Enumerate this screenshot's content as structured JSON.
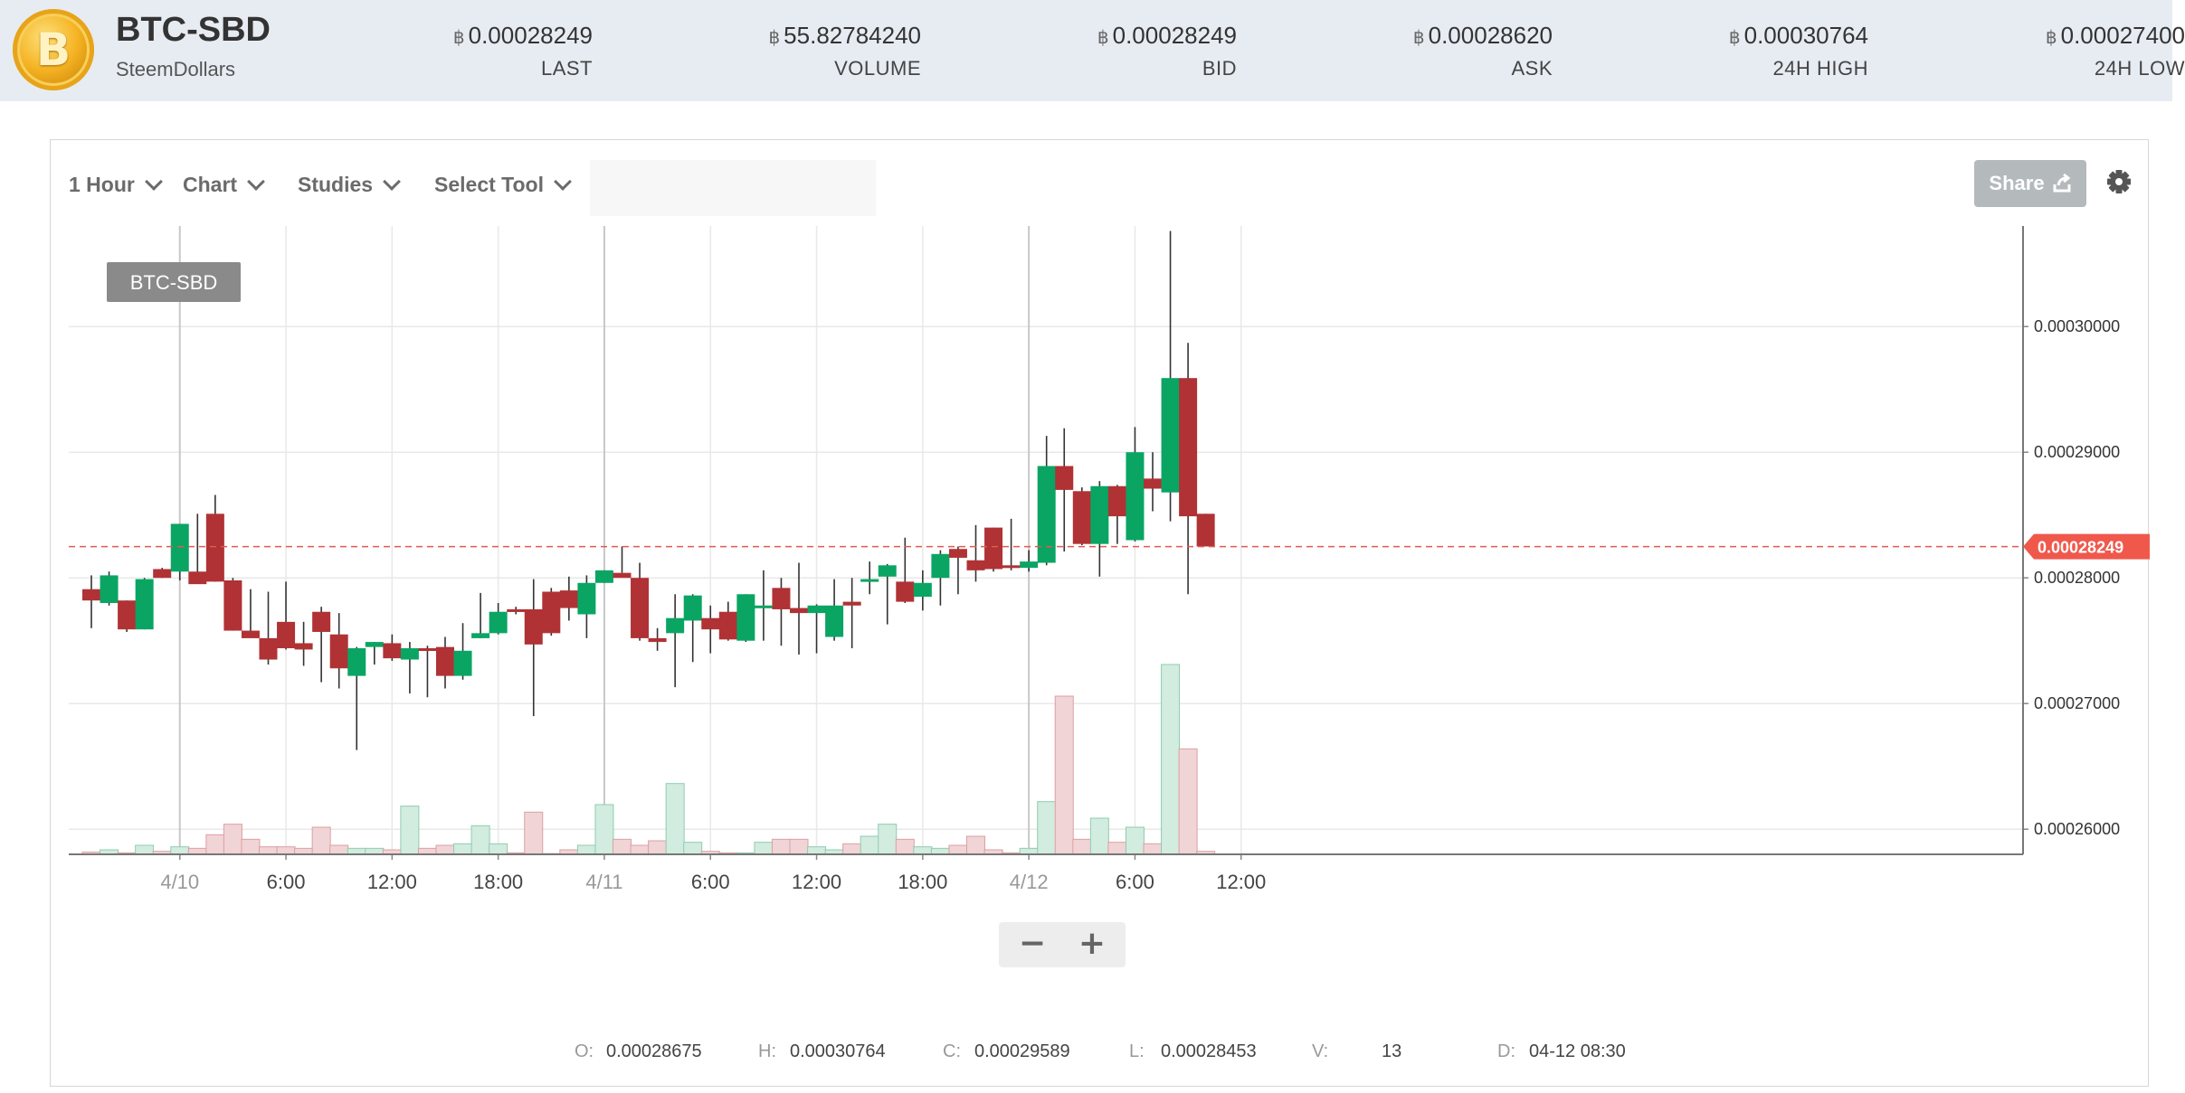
{
  "header": {
    "pair": "BTC-SBD",
    "pair_name": "SteemDollars",
    "currency_symbol": "฿",
    "stats": [
      {
        "value": "0.00028249",
        "label": "LAST"
      },
      {
        "value": "55.82784240",
        "label": "VOLUME"
      },
      {
        "value": "0.00028249",
        "label": "BID"
      },
      {
        "value": "0.00028620",
        "label": "ASK"
      },
      {
        "value": "0.00030764",
        "label": "24H HIGH"
      },
      {
        "value": "0.00027400",
        "label": "24H LOW"
      }
    ]
  },
  "toolbar": {
    "interval": "1 Hour",
    "chart": "Chart",
    "studies": "Studies",
    "select_tool": "Select Tool",
    "share": "Share"
  },
  "colors": {
    "up": "#0aa563",
    "down": "#b03235",
    "last_price_line": "#e05a4f",
    "grid": "#e8e8e8"
  },
  "ohlc": {
    "o_label": "O:",
    "o": "0.00028675",
    "h_label": "H:",
    "h": "0.00030764",
    "c_label": "C:",
    "c": "0.00029589",
    "l_label": "L:",
    "l": "0.00028453",
    "v_label": "V:",
    "v": "13",
    "d_label": "D:",
    "d": "04-12 08:30"
  },
  "chart_data": {
    "type": "candlestick",
    "symbol": "BTC-SBD",
    "interval": "1 Hour",
    "last_price": 0.00028249,
    "last_price_label": "0.00028249",
    "ylim": [
      0.000258,
      0.000308
    ],
    "y_ticks": [
      "0.00026000",
      "0.00027000",
      "0.00028000",
      "0.00029000",
      "0.00030000"
    ],
    "y_tick_values": [
      0.00026,
      0.00027,
      0.00028,
      0.00029,
      0.0003
    ],
    "x_labels": [
      "4/10",
      "6:00",
      "12:00",
      "18:00",
      "4/11",
      "6:00",
      "12:00",
      "18:00",
      "4/12",
      "6:00",
      "12:00"
    ],
    "x_label_hours": [
      5,
      11,
      17,
      23,
      29,
      35,
      41,
      47,
      53,
      59,
      65
    ],
    "candles": [
      {
        "o": 0.0002791,
        "h": 0.0002802,
        "l": 0.000276,
        "c": 0.0002782
      },
      {
        "o": 0.000278,
        "h": 0.0002805,
        "l": 0.0002778,
        "c": 0.0002802
      },
      {
        "o": 0.0002782,
        "h": 0.0002782,
        "l": 0.0002757,
        "c": 0.0002759
      },
      {
        "o": 0.0002759,
        "h": 0.00028,
        "l": 0.0002759,
        "c": 0.0002799
      },
      {
        "o": 0.0002807,
        "h": 0.0002808,
        "l": 0.00028,
        "c": 0.00028
      },
      {
        "o": 0.0002805,
        "h": 0.0002843,
        "l": 0.0002798,
        "c": 0.0002843
      },
      {
        "o": 0.0002805,
        "h": 0.0002851,
        "l": 0.0002796,
        "c": 0.0002795
      },
      {
        "o": 0.0002851,
        "h": 0.0002866,
        "l": 0.0002797,
        "c": 0.0002797
      },
      {
        "o": 0.0002798,
        "h": 0.00028,
        "l": 0.0002758,
        "c": 0.0002758
      },
      {
        "o": 0.0002758,
        "h": 0.0002791,
        "l": 0.0002753,
        "c": 0.0002752
      },
      {
        "o": 0.0002752,
        "h": 0.0002789,
        "l": 0.0002731,
        "c": 0.0002735
      },
      {
        "o": 0.0002765,
        "h": 0.0002797,
        "l": 0.0002743,
        "c": 0.0002744
      },
      {
        "o": 0.0002748,
        "h": 0.0002765,
        "l": 0.000273,
        "c": 0.0002743
      },
      {
        "o": 0.0002773,
        "h": 0.0002777,
        "l": 0.0002717,
        "c": 0.0002757
      },
      {
        "o": 0.0002755,
        "h": 0.0002772,
        "l": 0.0002712,
        "c": 0.0002728
      },
      {
        "o": 0.0002722,
        "h": 0.0002745,
        "l": 0.0002663,
        "c": 0.0002744
      },
      {
        "o": 0.0002745,
        "h": 0.0002749,
        "l": 0.0002731,
        "c": 0.0002749
      },
      {
        "o": 0.0002748,
        "h": 0.0002755,
        "l": 0.0002734,
        "c": 0.0002736
      },
      {
        "o": 0.0002735,
        "h": 0.0002749,
        "l": 0.0002708,
        "c": 0.0002744
      },
      {
        "o": 0.0002744,
        "h": 0.0002746,
        "l": 0.0002705,
        "c": 0.0002743
      },
      {
        "o": 0.0002745,
        "h": 0.0002753,
        "l": 0.0002712,
        "c": 0.0002722
      },
      {
        "o": 0.0002722,
        "h": 0.0002764,
        "l": 0.0002719,
        "c": 0.0002742
      },
      {
        "o": 0.0002752,
        "h": 0.0002788,
        "l": 0.0002752,
        "c": 0.0002756
      },
      {
        "o": 0.0002756,
        "h": 0.000278,
        "l": 0.0002755,
        "c": 0.0002773
      },
      {
        "o": 0.0002775,
        "h": 0.0002777,
        "l": 0.0002771,
        "c": 0.0002773
      },
      {
        "o": 0.0002775,
        "h": 0.0002799,
        "l": 0.000269,
        "c": 0.0002747
      },
      {
        "o": 0.0002789,
        "h": 0.0002792,
        "l": 0.0002754,
        "c": 0.0002756
      },
      {
        "o": 0.000279,
        "h": 0.0002801,
        "l": 0.0002766,
        "c": 0.0002776
      },
      {
        "o": 0.0002771,
        "h": 0.0002802,
        "l": 0.0002752,
        "c": 0.0002796
      },
      {
        "o": 0.0002796,
        "h": 0.0002806,
        "l": 0.0002796,
        "c": 0.0002806
      },
      {
        "o": 0.0002804,
        "h": 0.0002825,
        "l": 0.0002804,
        "c": 0.00028
      },
      {
        "o": 0.00028,
        "h": 0.0002812,
        "l": 0.000275,
        "c": 0.0002752
      },
      {
        "o": 0.0002752,
        "h": 0.000276,
        "l": 0.0002742,
        "c": 0.0002749
      },
      {
        "o": 0.0002756,
        "h": 0.0002787,
        "l": 0.0002713,
        "c": 0.0002768
      },
      {
        "o": 0.0002766,
        "h": 0.0002787,
        "l": 0.0002733,
        "c": 0.0002786
      },
      {
        "o": 0.0002768,
        "h": 0.0002778,
        "l": 0.000274,
        "c": 0.0002759
      },
      {
        "o": 0.0002773,
        "h": 0.0002781,
        "l": 0.000275,
        "c": 0.0002751
      },
      {
        "o": 0.000275,
        "h": 0.0002787,
        "l": 0.0002749,
        "c": 0.0002787
      },
      {
        "o": 0.0002776,
        "h": 0.0002806,
        "l": 0.000275,
        "c": 0.0002778
      },
      {
        "o": 0.0002792,
        "h": 0.00028,
        "l": 0.0002746,
        "c": 0.0002775
      },
      {
        "o": 0.0002776,
        "h": 0.0002812,
        "l": 0.0002739,
        "c": 0.0002772
      },
      {
        "o": 0.0002772,
        "h": 0.0002779,
        "l": 0.000274,
        "c": 0.0002778
      },
      {
        "o": 0.0002753,
        "h": 0.0002799,
        "l": 0.000275,
        "c": 0.0002778
      },
      {
        "o": 0.0002781,
        "h": 0.00028,
        "l": 0.0002744,
        "c": 0.0002778
      },
      {
        "o": 0.0002797,
        "h": 0.0002813,
        "l": 0.0002787,
        "c": 0.0002799
      },
      {
        "o": 0.0002801,
        "h": 0.0002811,
        "l": 0.0002763,
        "c": 0.000281
      },
      {
        "o": 0.0002797,
        "h": 0.0002832,
        "l": 0.000278,
        "c": 0.0002781
      },
      {
        "o": 0.0002785,
        "h": 0.0002806,
        "l": 0.0002774,
        "c": 0.0002796
      },
      {
        "o": 0.00028,
        "h": 0.0002822,
        "l": 0.0002778,
        "c": 0.0002819
      },
      {
        "o": 0.0002823,
        "h": 0.0002825,
        "l": 0.0002787,
        "c": 0.0002816
      },
      {
        "o": 0.0002814,
        "h": 0.0002842,
        "l": 0.0002797,
        "c": 0.0002806
      },
      {
        "o": 0.000284,
        "h": 0.000284,
        "l": 0.0002805,
        "c": 0.0002807
      },
      {
        "o": 0.000281,
        "h": 0.0002847,
        "l": 0.0002806,
        "c": 0.0002808
      },
      {
        "o": 0.0002808,
        "h": 0.0002822,
        "l": 0.0002805,
        "c": 0.0002813
      },
      {
        "o": 0.0002812,
        "h": 0.0002913,
        "l": 0.000281,
        "c": 0.0002889
      },
      {
        "o": 0.0002889,
        "h": 0.0002919,
        "l": 0.0002821,
        "c": 0.000287
      },
      {
        "o": 0.0002869,
        "h": 0.0002872,
        "l": 0.0002826,
        "c": 0.0002827
      },
      {
        "o": 0.0002827,
        "h": 0.0002877,
        "l": 0.0002801,
        "c": 0.0002873
      },
      {
        "o": 0.0002873,
        "h": 0.0002874,
        "l": 0.0002827,
        "c": 0.0002849
      },
      {
        "o": 0.000283,
        "h": 0.000292,
        "l": 0.0002829,
        "c": 0.00029
      },
      {
        "o": 0.0002879,
        "h": 0.00029,
        "l": 0.0002853,
        "c": 0.0002871
      },
      {
        "o": 0.0002868,
        "h": 0.0003076,
        "l": 0.0002845,
        "c": 0.0002959
      },
      {
        "o": 0.0002959,
        "h": 0.0002987,
        "l": 0.0002787,
        "c": 0.0002849
      },
      {
        "o": 0.0002851,
        "h": 0.0002851,
        "l": 0.0002826,
        "c": 0.0002825
      }
    ],
    "volumes": [
      1.5,
      3,
      1,
      6,
      2,
      5,
      4,
      13,
      20,
      10,
      5,
      5,
      4,
      18,
      6,
      4,
      4,
      3,
      32,
      4,
      6,
      7,
      19,
      7,
      1,
      28,
      0.5,
      3,
      6,
      33,
      10,
      6,
      9,
      47,
      8,
      2,
      1,
      1,
      8,
      10,
      10,
      5,
      3,
      7,
      12,
      20,
      10,
      5,
      4,
      6,
      12,
      3,
      1,
      4,
      35,
      105,
      10,
      24,
      8,
      18,
      7,
      126,
      70,
      2
    ]
  }
}
